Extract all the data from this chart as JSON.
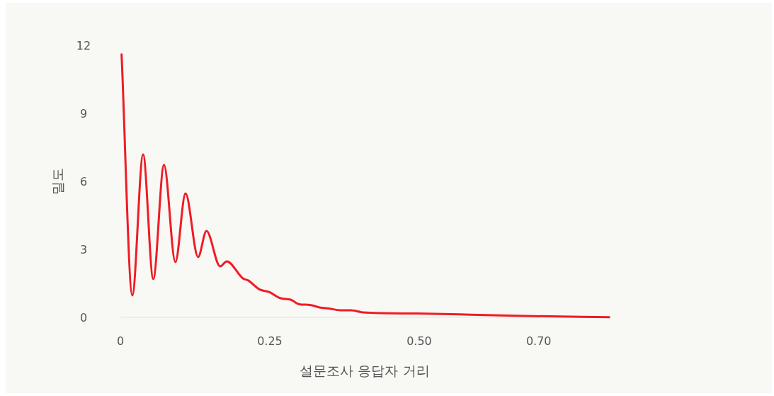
{
  "chart_data": {
    "type": "line",
    "xlabel": "설문조사 응답자 거리",
    "ylabel": "밀도",
    "xlim": [
      0,
      0.82
    ],
    "ylim": [
      0,
      12
    ],
    "xticks": [
      0,
      0.25,
      {
        "value": 0.5,
        "label": "0.50"
      },
      {
        "value": 0.7,
        "label": "0.70"
      }
    ],
    "yticks": [
      0,
      3,
      6,
      9,
      12
    ],
    "grid": false,
    "marker": "none",
    "line_style": "solid",
    "series": [
      {
        "color": "#ee1c25",
        "x": [
          0.002,
          0.02,
          0.038,
          0.055,
          0.073,
          0.092,
          0.109,
          0.13,
          0.144,
          0.167,
          0.178,
          0.205,
          0.214,
          0.233,
          0.249,
          0.267,
          0.285,
          0.299,
          0.317,
          0.333,
          0.349,
          0.37,
          0.386,
          0.406,
          0.495,
          0.586,
          0.677,
          0.818
        ],
        "values": [
          11.6,
          0.97,
          7.19,
          1.69,
          6.73,
          2.44,
          5.47,
          2.66,
          3.81,
          2.25,
          2.47,
          1.72,
          1.63,
          1.23,
          1.12,
          0.85,
          0.78,
          0.58,
          0.55,
          0.44,
          0.39,
          0.31,
          0.31,
          0.22,
          0.17,
          0.12,
          0.06,
          0.01
        ]
      }
    ]
  }
}
